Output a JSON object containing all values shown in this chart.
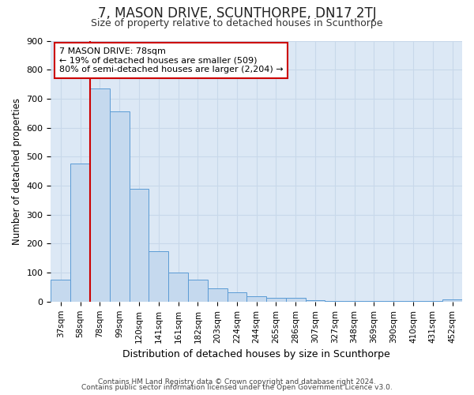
{
  "title": "7, MASON DRIVE, SCUNTHORPE, DN17 2TJ",
  "subtitle": "Size of property relative to detached houses in Scunthorpe",
  "xlabel": "Distribution of detached houses by size in Scunthorpe",
  "ylabel": "Number of detached properties",
  "categories": [
    "37sqm",
    "58sqm",
    "78sqm",
    "99sqm",
    "120sqm",
    "141sqm",
    "161sqm",
    "182sqm",
    "203sqm",
    "224sqm",
    "244sqm",
    "265sqm",
    "286sqm",
    "307sqm",
    "327sqm",
    "348sqm",
    "369sqm",
    "390sqm",
    "410sqm",
    "431sqm",
    "452sqm"
  ],
  "values": [
    75,
    475,
    735,
    655,
    390,
    175,
    100,
    75,
    47,
    33,
    18,
    12,
    12,
    5,
    3,
    2,
    1,
    1,
    1,
    1,
    8
  ],
  "bar_color": "#c5d9ee",
  "bar_edge_color": "#5b9bd5",
  "highlight_bar_index": 2,
  "highlight_color": "#cc0000",
  "annotation_text": "7 MASON DRIVE: 78sqm\n← 19% of detached houses are smaller (509)\n80% of semi-detached houses are larger (2,204) →",
  "annotation_box_color": "#ffffff",
  "annotation_box_edge_color": "#cc0000",
  "ylim": [
    0,
    900
  ],
  "yticks": [
    0,
    100,
    200,
    300,
    400,
    500,
    600,
    700,
    800,
    900
  ],
  "grid_color": "#c8d8ea",
  "plot_bg_color": "#dce8f5",
  "fig_bg_color": "#ffffff",
  "footer_line1": "Contains HM Land Registry data © Crown copyright and database right 2024.",
  "footer_line2": "Contains public sector information licensed under the Open Government Licence v3.0."
}
